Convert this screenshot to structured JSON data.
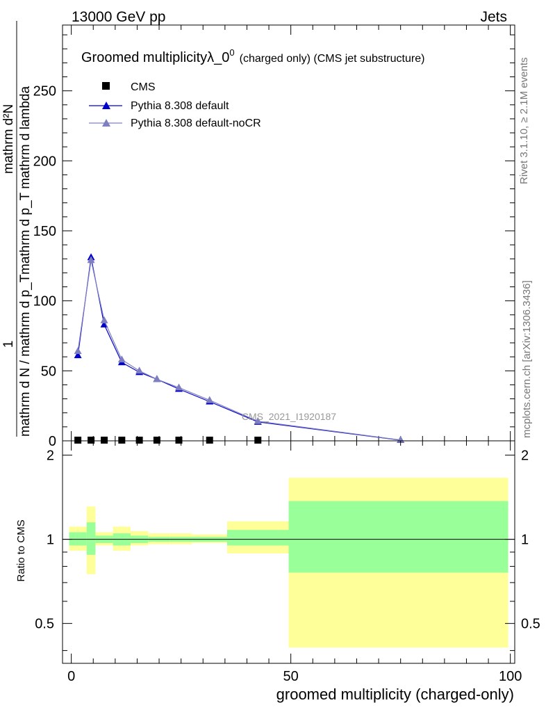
{
  "header": {
    "left": "13000 GeV pp",
    "right": "Jets"
  },
  "side_labels": {
    "rivet": "Rivet 3.1.10, ≥ 2.1M events",
    "mcplots": "mcplots.cern.ch [arXiv:1306.3436]"
  },
  "chart_data": {
    "type": "line",
    "title": "Groomed multiplicityλ_0",
    "title_superscript": "0",
    "title_suffix": "(charged only) (CMS jet substructure)",
    "xlabel": "groomed multiplicity (charged-only)",
    "ylabel_numerator": "mathrm d²N",
    "ylabel_numerator_2": "mathrm d p_T mathrm d lambda",
    "ylabel_one": "1",
    "ylabel_denominator": "mathrm d N / mathrm d p_T",
    "ratio_ylabel": "Ratio to CMS",
    "analysis_label": "CMS_2021_I1920187",
    "xlim": [
      -2,
      101
    ],
    "ylim": [
      0,
      297
    ],
    "ratio_ylim": [
      0.36,
      2.25
    ],
    "x_ticks": [
      0,
      50,
      100
    ],
    "y_ticks": [
      0,
      50,
      100,
      150,
      200,
      250
    ],
    "ratio_ticks": [
      0.5,
      1,
      2
    ],
    "ratio_tick_labels": [
      "0.5",
      "1",
      "2"
    ],
    "legend_position": "top-left",
    "series": [
      {
        "name": "CMS",
        "color": "#000000",
        "marker": "square",
        "x": [
          1.5,
          4.5,
          7.5,
          11.5,
          15.5,
          19.5,
          24.5,
          31.5,
          42.5
        ],
        "values": [
          0,
          0,
          0,
          0,
          0,
          0,
          0,
          0,
          0
        ]
      },
      {
        "name": "Pythia 8.308 default",
        "color": "#0000cc",
        "marker": "triangle",
        "x": [
          1.5,
          4.5,
          7.5,
          11.5,
          15.5,
          19.5,
          24.5,
          31.5,
          42.5,
          75
        ],
        "values": [
          61,
          131,
          83,
          56,
          49,
          44,
          37,
          28,
          13.5,
          0.5
        ]
      },
      {
        "name": "Pythia 8.308 default-noCR",
        "color": "#7f7fbf",
        "marker": "triangle",
        "x": [
          1.5,
          4.5,
          7.5,
          11.5,
          15.5,
          19.5,
          24.5,
          31.5,
          42.5,
          75
        ],
        "values": [
          64,
          129,
          86,
          58,
          50,
          44,
          38,
          29,
          14,
          0.6
        ]
      }
    ],
    "ratio_bands": [
      {
        "x0": -0.5,
        "x1": 3.5,
        "green": [
          0.95,
          1.06
        ],
        "yellow": [
          0.91,
          1.11
        ]
      },
      {
        "x0": 3.5,
        "x1": 5.5,
        "green": [
          0.88,
          1.15
        ],
        "yellow": [
          0.75,
          1.31
        ]
      },
      {
        "x0": 5.5,
        "x1": 9.5,
        "green": [
          0.97,
          1.03
        ],
        "yellow": [
          0.95,
          1.06
        ]
      },
      {
        "x0": 9.5,
        "x1": 13.5,
        "green": [
          0.95,
          1.05
        ],
        "yellow": [
          0.91,
          1.11
        ]
      },
      {
        "x0": 13.5,
        "x1": 17.5,
        "green": [
          0.97,
          1.03
        ],
        "yellow": [
          0.95,
          1.07
        ]
      },
      {
        "x0": 17.5,
        "x1": 22.5,
        "green": [
          0.98,
          1.02
        ],
        "yellow": [
          0.96,
          1.05
        ]
      },
      {
        "x0": 22.5,
        "x1": 27.5,
        "green": [
          0.98,
          1.02
        ],
        "yellow": [
          0.96,
          1.05
        ]
      },
      {
        "x0": 27.5,
        "x1": 35.5,
        "green": [
          0.98,
          1.02
        ],
        "yellow": [
          0.97,
          1.04
        ]
      },
      {
        "x0": 35.5,
        "x1": 49.5,
        "green": [
          0.95,
          1.08
        ],
        "yellow": [
          0.89,
          1.16
        ]
      },
      {
        "x0": 49.5,
        "x1": 99.5,
        "green": [
          0.76,
          1.37
        ],
        "yellow": [
          0.41,
          1.66
        ]
      }
    ]
  }
}
